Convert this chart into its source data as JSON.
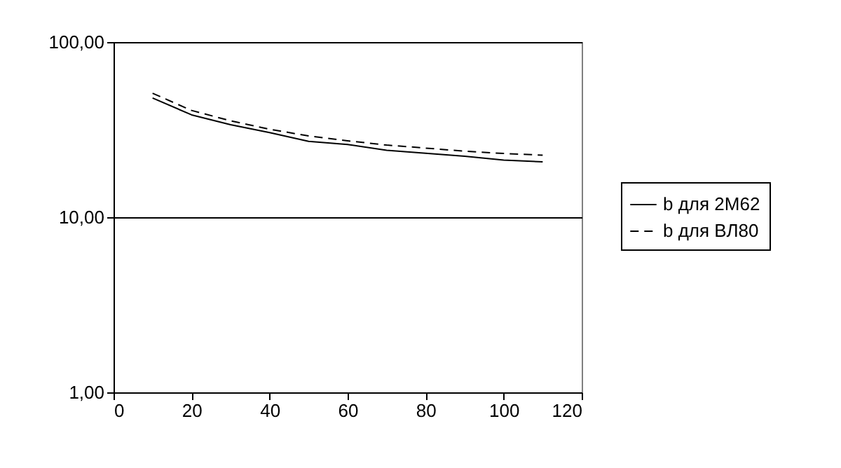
{
  "chart_data": {
    "type": "line",
    "x": [
      10,
      20,
      30,
      40,
      50,
      60,
      70,
      80,
      90,
      100,
      110
    ],
    "series": [
      {
        "name": "b для 2М62",
        "color": "#000000",
        "line_style": "solid",
        "values": [
          47.9,
          38.4,
          33.7,
          30.4,
          27.1,
          26.0,
          24.1,
          23.2,
          22.3,
          21.2,
          20.7
        ]
      },
      {
        "name": "b для ВЛ80",
        "color": "#000000",
        "line_style": "dashed",
        "values": [
          51.0,
          40.7,
          35.5,
          31.8,
          29.1,
          27.3,
          25.8,
          24.8,
          23.8,
          23.1,
          22.6
        ]
      }
    ],
    "log": "y",
    "xlim": [
      0,
      120
    ],
    "xticks": [
      0,
      20,
      40,
      60,
      80,
      100,
      120
    ],
    "ylim": [
      1,
      100
    ],
    "yticks": [
      {
        "value": 1,
        "label": "1,00"
      },
      {
        "value": 10,
        "label": "10,00"
      },
      {
        "value": 100,
        "label": "100,00"
      }
    ],
    "grid": "y",
    "legend": "right",
    "marker": "none"
  }
}
